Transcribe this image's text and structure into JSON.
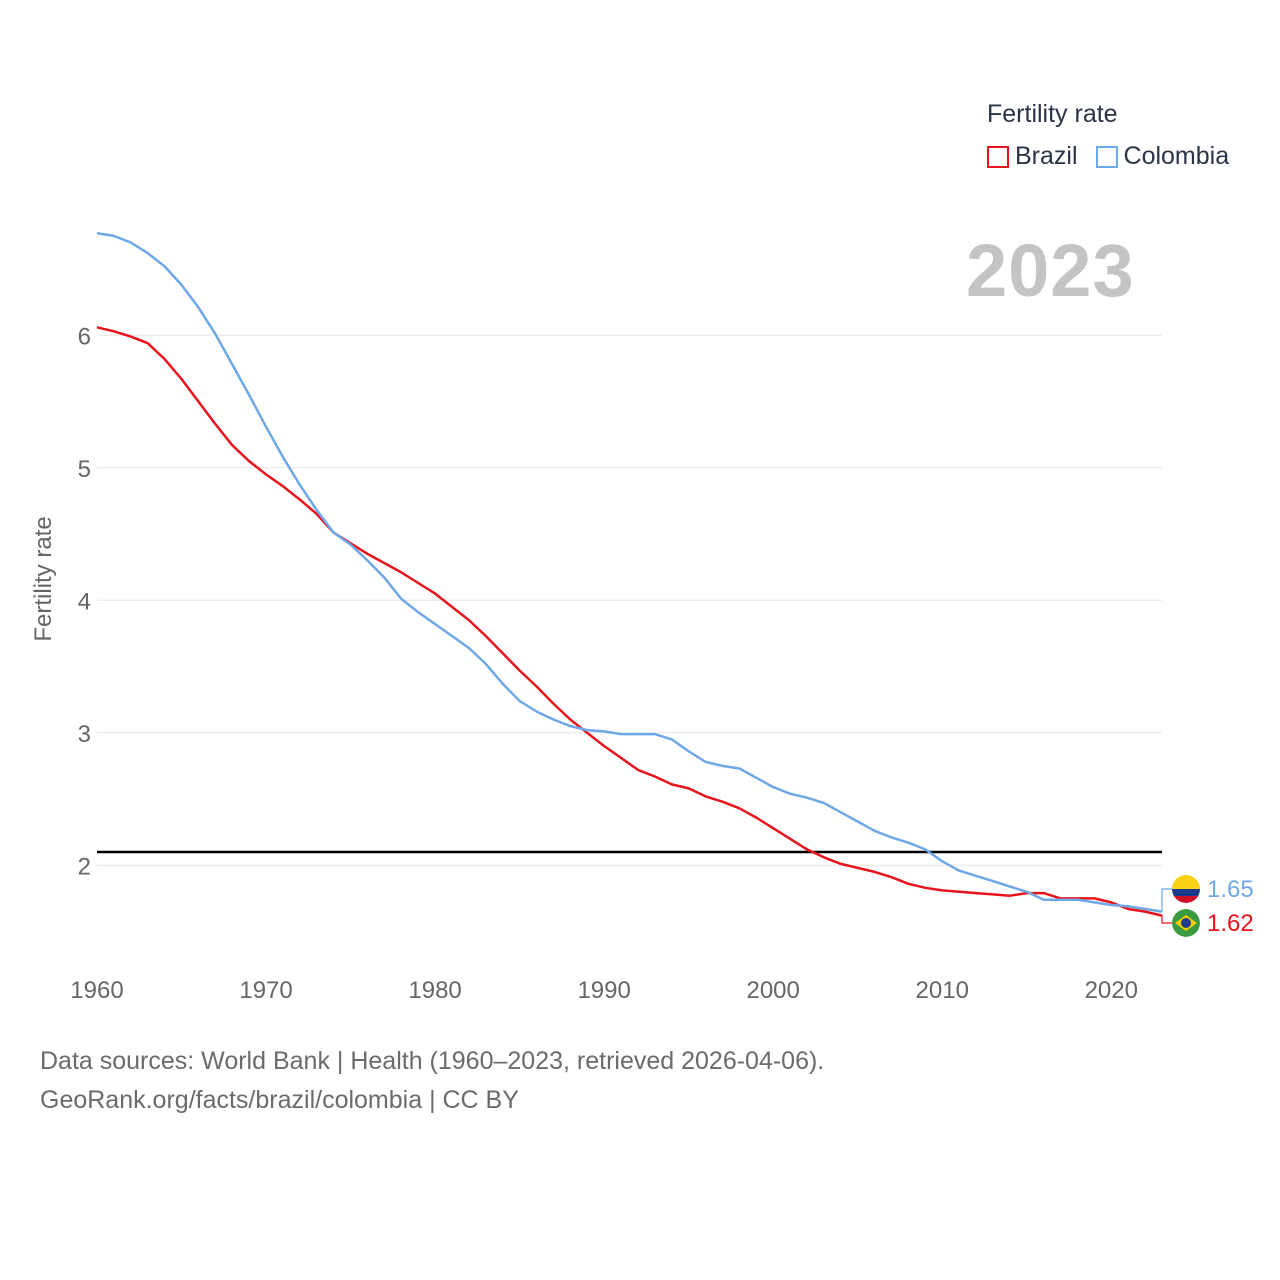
{
  "legend": {
    "title": "Fertility rate",
    "items": [
      {
        "label": "Brazil",
        "color": "#e8141c"
      },
      {
        "label": "Colombia",
        "color": "#6fa8e6"
      }
    ]
  },
  "current_year": "2023",
  "footer": {
    "line1": "Data sources: World Bank | Health (1960–2023, retrieved 2026-04-06).",
    "line2": "GeoRank.org/facts/brazil/colombia | CC BY"
  },
  "chart_data": {
    "type": "line",
    "title": "",
    "xlabel": "",
    "ylabel": "Fertility rate",
    "xlim": [
      1960,
      2023
    ],
    "ylim": [
      1.3,
      6.9
    ],
    "x_ticks": [
      1960,
      1970,
      1980,
      1990,
      2000,
      2010,
      2020
    ],
    "y_ticks": [
      2,
      3,
      4,
      5,
      6
    ],
    "reference_line": {
      "y": 2.1,
      "color": "#000000"
    },
    "x": [
      1960,
      1961,
      1962,
      1963,
      1964,
      1965,
      1966,
      1967,
      1968,
      1969,
      1970,
      1971,
      1972,
      1973,
      1974,
      1975,
      1976,
      1977,
      1978,
      1979,
      1980,
      1981,
      1982,
      1983,
      1984,
      1985,
      1986,
      1987,
      1988,
      1989,
      1990,
      1991,
      1992,
      1993,
      1994,
      1995,
      1996,
      1997,
      1998,
      1999,
      2000,
      2001,
      2002,
      2003,
      2004,
      2005,
      2006,
      2007,
      2008,
      2009,
      2010,
      2011,
      2012,
      2013,
      2014,
      2015,
      2016,
      2017,
      2018,
      2019,
      2020,
      2021,
      2022,
      2023
    ],
    "series": [
      {
        "name": "Brazil",
        "color": "#e8141c",
        "end_label": "1.62",
        "values": [
          6.06,
          6.03,
          5.99,
          5.94,
          5.82,
          5.67,
          5.5,
          5.33,
          5.17,
          5.05,
          4.95,
          4.86,
          4.76,
          4.65,
          4.51,
          4.43,
          4.35,
          4.28,
          4.21,
          4.13,
          4.05,
          3.95,
          3.85,
          3.73,
          3.6,
          3.47,
          3.35,
          3.22,
          3.1,
          3.0,
          2.9,
          2.81,
          2.72,
          2.67,
          2.61,
          2.58,
          2.52,
          2.48,
          2.43,
          2.36,
          2.28,
          2.2,
          2.12,
          2.06,
          2.01,
          1.98,
          1.95,
          1.91,
          1.86,
          1.83,
          1.81,
          1.8,
          1.79,
          1.78,
          1.77,
          1.79,
          1.79,
          1.75,
          1.75,
          1.75,
          1.72,
          1.67,
          1.65,
          1.62
        ]
      },
      {
        "name": "Colombia",
        "color": "#6fa8e6",
        "end_label": "1.65",
        "values": [
          6.77,
          6.75,
          6.7,
          6.62,
          6.52,
          6.38,
          6.21,
          6.01,
          5.78,
          5.55,
          5.31,
          5.08,
          4.87,
          4.68,
          4.51,
          4.42,
          4.3,
          4.17,
          4.01,
          3.91,
          3.82,
          3.73,
          3.64,
          3.52,
          3.37,
          3.24,
          3.16,
          3.1,
          3.05,
          3.02,
          3.01,
          2.99,
          2.99,
          2.99,
          2.95,
          2.86,
          2.78,
          2.75,
          2.73,
          2.66,
          2.59,
          2.54,
          2.51,
          2.47,
          2.4,
          2.33,
          2.26,
          2.21,
          2.17,
          2.12,
          2.03,
          1.96,
          1.92,
          1.88,
          1.84,
          1.8,
          1.74,
          1.74,
          1.74,
          1.72,
          1.7,
          1.69,
          1.67,
          1.65
        ]
      }
    ]
  }
}
